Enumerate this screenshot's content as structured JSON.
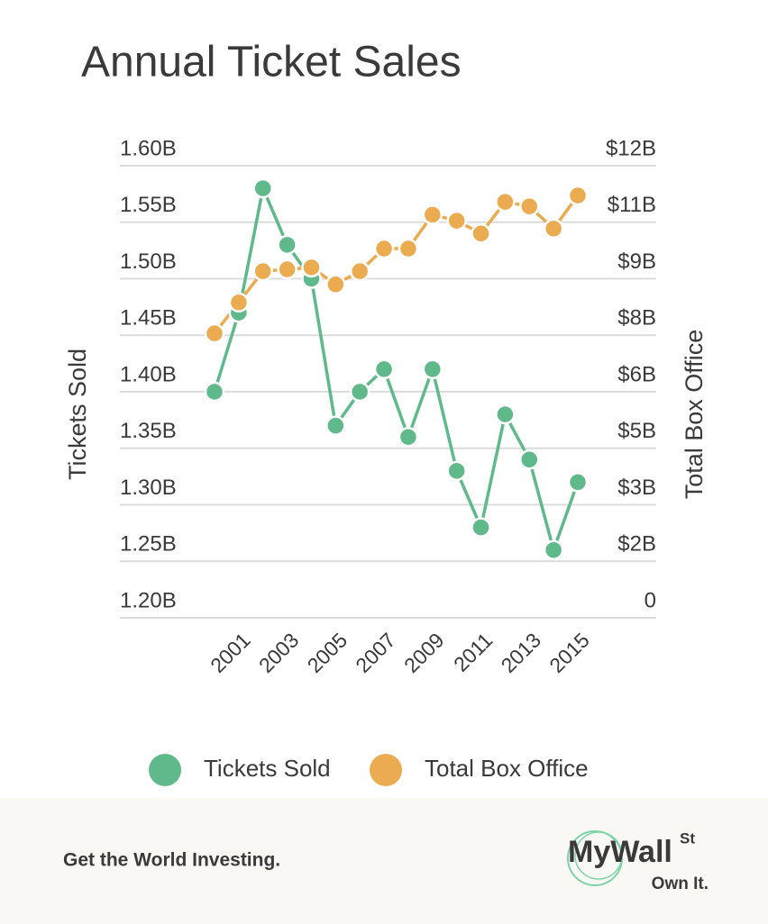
{
  "chart_data": {
    "type": "line",
    "title": "Annual Ticket Sales",
    "categories": [
      null,
      "2001",
      null,
      "2003",
      null,
      "2005",
      null,
      "2007",
      null,
      "2009",
      null,
      "2011",
      null,
      "2013",
      null,
      "2015"
    ],
    "series": [
      {
        "name": "Tickets Sold",
        "color": "#5fb98a",
        "axis": "y",
        "values": [
          1.4,
          1.47,
          1.58,
          1.53,
          1.5,
          1.37,
          1.4,
          1.42,
          1.36,
          1.42,
          1.33,
          1.28,
          1.38,
          1.34,
          1.26,
          1.32
        ]
      },
      {
        "name": "Total Box Office",
        "color": "#ebab50",
        "axis": "y2",
        "values": [
          7.55,
          8.37,
          9.2,
          9.25,
          9.3,
          8.85,
          9.2,
          9.8,
          9.8,
          10.7,
          10.54,
          10.2,
          11.04,
          10.92,
          10.33,
          11.21
        ]
      }
    ],
    "ylabel": "Tickets Sold",
    "y2label": "Total Box Office",
    "ylim": [
      1.2,
      1.6
    ],
    "yticks": [
      {
        "value": 1.2,
        "label": "1.20B"
      },
      {
        "value": 1.25,
        "label": "1.25B"
      },
      {
        "value": 1.3,
        "label": "1.30B"
      },
      {
        "value": 1.35,
        "label": "1.35B"
      },
      {
        "value": 1.4,
        "label": "1.40B"
      },
      {
        "value": 1.45,
        "label": "1.45B"
      },
      {
        "value": 1.5,
        "label": "1.50B"
      },
      {
        "value": 1.55,
        "label": "1.55B"
      },
      {
        "value": 1.6,
        "label": "1.60B"
      }
    ],
    "y2lim": [
      0,
      12
    ],
    "y2ticks": [
      0,
      {
        "value": 1.5,
        "label": "$2B"
      },
      {
        "value": 3,
        "label": "$3B"
      },
      {
        "value": 4.5,
        "label": "$5B"
      },
      {
        "value": 6,
        "label": "$6B"
      },
      {
        "value": 7.5,
        "label": "$8B"
      },
      {
        "value": 9,
        "label": "$9B"
      },
      {
        "value": 10.5,
        "label": "$11B"
      },
      {
        "value": 12,
        "label": "$12B"
      }
    ],
    "grid": true,
    "legend": "bottom"
  },
  "footer": {
    "tagline": "Get the World Investing.",
    "logo": "MyWall",
    "logo_sup": "St",
    "slogan": "Own It."
  }
}
